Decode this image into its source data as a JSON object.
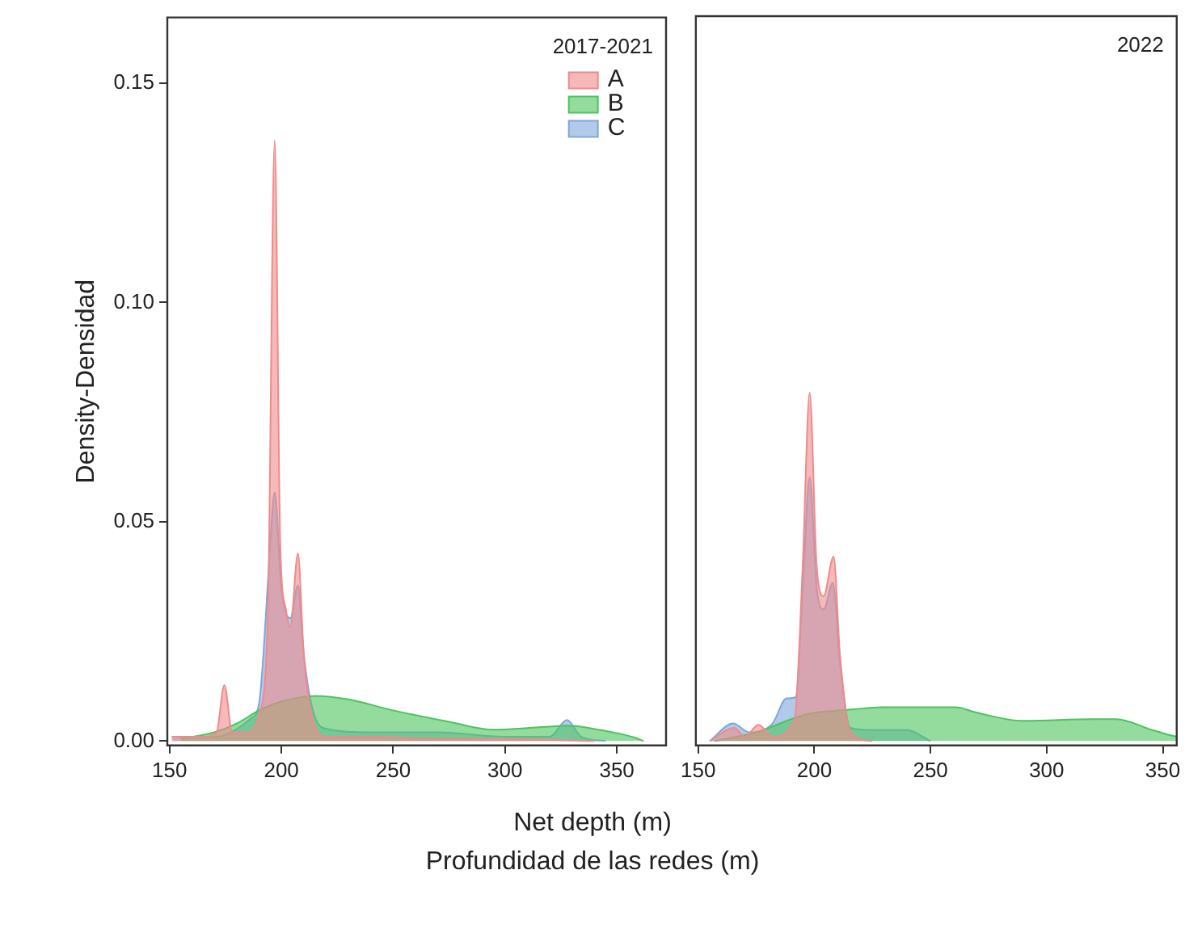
{
  "chart_data": [
    {
      "type": "area",
      "ylabel": "Density-Densidad",
      "xlabel": "Net depth (m)\nProfundidad de las redes (m)",
      "legend_title": "2017-2021",
      "legend": "top right",
      "grid": false,
      "xlim": [
        149,
        372
      ],
      "xticks": [
        150,
        200,
        250,
        300,
        350
      ],
      "ylim": [
        -0.001,
        0.165
      ],
      "yticks": [
        {
          "value": 0,
          "label": "0.00"
        },
        0.05,
        {
          "value": 0.1,
          "label": "0.10"
        },
        0.15
      ],
      "series": [
        {
          "name": "A",
          "color": "#f08a8a",
          "x": [
            151,
            165,
            171,
            174.5,
            178,
            185,
            190,
            194,
            197,
            199.5,
            202,
            204,
            207.4,
            210,
            214,
            220,
            240,
            270,
            300,
            340
          ],
          "values": [
            0.001,
            0.001,
            0.002,
            0.0128,
            0.002,
            0.002,
            0.006,
            0.03,
            0.137,
            0.045,
            0.03,
            0.026,
            0.0428,
            0.02,
            0.005,
            0.001,
            0.001,
            0.0005,
            0.0005,
            0
          ]
        },
        {
          "name": "B",
          "color": "#4cc45c",
          "x": [
            155,
            170,
            180,
            190,
            200,
            215,
            230,
            250,
            275,
            295,
            320,
            328,
            343,
            358,
            362
          ],
          "values": [
            0.0005,
            0.002,
            0.004,
            0.007,
            0.009,
            0.0103,
            0.0095,
            0.007,
            0.0044,
            0.0026,
            0.0033,
            0.0035,
            0.0025,
            0.0008,
            0
          ]
        },
        {
          "name": "C",
          "color": "#7fa6dc",
          "x": [
            151,
            170,
            186,
            190,
            192,
            195,
            197,
            200,
            204,
            207.4,
            210,
            213.6,
            218.6,
            240,
            270,
            300,
            320,
            327.7,
            334,
            345
          ],
          "values": [
            0.001,
            0.001,
            0.005,
            0.0085,
            0.02,
            0.045,
            0.0567,
            0.035,
            0.028,
            0.0355,
            0.02,
            0.008,
            0.003,
            0.002,
            0.002,
            0.001,
            0.001,
            0.0048,
            0.001,
            0
          ]
        }
      ]
    },
    {
      "type": "area",
      "legend_title": "2022",
      "legend": "top right",
      "grid": false,
      "tick_labels": "x",
      "xlim": [
        149,
        356
      ],
      "xticks": [
        150,
        200,
        250,
        300,
        350
      ],
      "ylim": [
        -0.001,
        0.165
      ],
      "series": [
        {
          "color": "#f08a8a",
          "x": [
            155,
            165.5,
            170,
            176,
            182,
            191.5,
            195,
            198,
            201,
            204,
            208.3,
            211,
            215.5,
            225
          ],
          "values": [
            0,
            0.003,
            0.001,
            0.0037,
            0.001,
            0.005,
            0.04,
            0.0793,
            0.04,
            0.033,
            0.042,
            0.02,
            0.002,
            0
          ]
        },
        {
          "color": "#4cc45c",
          "x": [
            157,
            175,
            196,
            218,
            229,
            261,
            269,
            290,
            320,
            330,
            345,
            352,
            356
          ],
          "values": [
            0,
            0.002,
            0.006,
            0.0073,
            0.0077,
            0.0077,
            0.0066,
            0.0046,
            0.005,
            0.005,
            0.0026,
            0.0015,
            0.001
          ]
        },
        {
          "color": "#7fa6dc",
          "x": [
            155,
            165,
            172,
            182,
            188,
            192,
            195,
            198,
            201,
            204,
            208,
            211,
            215.5,
            225,
            240,
            250
          ],
          "values": [
            0,
            0.004,
            0.002,
            0.004,
            0.0097,
            0.01,
            0.035,
            0.06,
            0.035,
            0.03,
            0.036,
            0.018,
            0.003,
            0.0025,
            0.0025,
            0
          ]
        }
      ]
    }
  ]
}
